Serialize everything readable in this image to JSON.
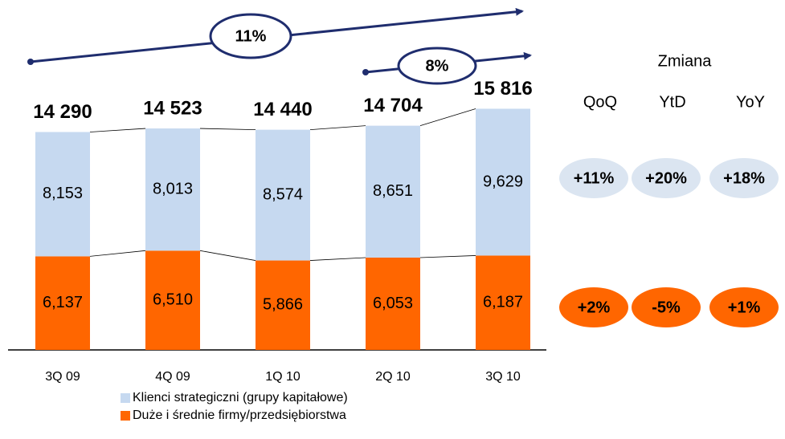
{
  "chart_data": {
    "type": "stacked-bar",
    "categories": [
      "3Q 09",
      "4Q 09",
      "1Q 10",
      "2Q 10",
      "3Q 10"
    ],
    "series": [
      {
        "name": "Duże i średnie firmy/przedsiębiorstwa",
        "color": "#ff6600",
        "values": [
          6137,
          6510,
          5866,
          6053,
          6187
        ],
        "value_labels": [
          "6,137",
          "6,510",
          "5,866",
          "6,053",
          "6,187"
        ]
      },
      {
        "name": "Klienci strategiczni (grupy kapitałowe)",
        "color": "#c6d9f0",
        "values": [
          8153,
          8013,
          8574,
          8651,
          9629
        ],
        "value_labels": [
          "8,153",
          "8,013",
          "8,574",
          "8,651",
          "9,629"
        ]
      }
    ],
    "totals": {
      "values": [
        14290,
        14523,
        14440,
        14704,
        15816
      ],
      "value_labels": [
        "14 290",
        "14 523",
        "14 440",
        "14 704",
        "15 816"
      ]
    },
    "annotations": {
      "growth_long": "11%",
      "growth_short": "8%"
    },
    "changes": {
      "title": "Zmiana",
      "headers": [
        "QoQ",
        "YtD",
        "YoY"
      ],
      "rows": [
        [
          "+11%",
          "+20%",
          "+18%"
        ],
        [
          "+2%",
          "-5%",
          "+1%"
        ]
      ]
    }
  }
}
